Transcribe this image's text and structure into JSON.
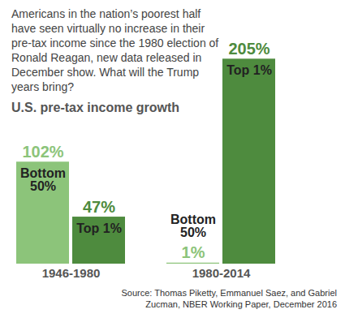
{
  "chart_data": {
    "type": "bar",
    "title": "U.S. pre-tax income growth",
    "subtitle": "Americans in the nation’s poorest half have seen virtually no increase in their pre-tax income since the 1980 election of Ronald Reagan, new data released in December show. What will the Trump years bring?",
    "source": "Source: Thomas Piketty, Emmanuel Saez, and Gabriel Zucman, NBER Working Paper, December 2016",
    "categories": [
      "1946-1980",
      "1980-2014"
    ],
    "series": [
      {
        "name": "Bottom 50%",
        "color": "#8cc47a",
        "values": [
          102,
          1
        ],
        "value_labels": [
          "102%",
          "1%"
        ]
      },
      {
        "name": "Top 1%",
        "color": "#4e8b3e",
        "values": [
          47,
          205
        ],
        "value_labels": [
          "47%",
          "205%"
        ]
      }
    ],
    "ylim": [
      0,
      215
    ],
    "yticks": [],
    "data_labels": true,
    "tick_labels": "x"
  }
}
